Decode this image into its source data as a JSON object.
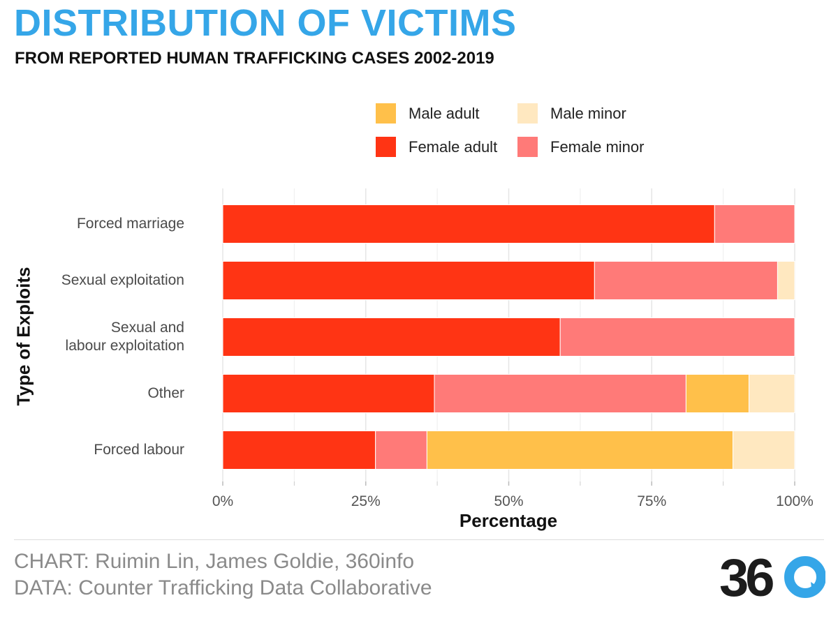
{
  "header": {
    "title": "DISTRIBUTION OF VICTIMS",
    "subtitle": "FROM REPORTED HUMAN TRAFFICKING CASES 2002-2019"
  },
  "colors": {
    "title": "#35a6e8",
    "female_adult": "#ff3414",
    "female_minor": "#ff7a78",
    "male_adult": "#ffc04a",
    "male_minor": "#ffe8c0",
    "logo_dark": "#1c1c1c",
    "logo_blue": "#35a6e8"
  },
  "legend": [
    {
      "label": "Male adult",
      "color": "#ffc04a"
    },
    {
      "label": "Male minor",
      "color": "#ffe8c0"
    },
    {
      "label": "Female adult",
      "color": "#ff3414"
    },
    {
      "label": "Female minor",
      "color": "#ff7a78"
    }
  ],
  "chart_data": {
    "type": "bar",
    "orientation": "horizontal",
    "stacked": true,
    "title": "DISTRIBUTION OF VICTIMS",
    "subtitle": "FROM REPORTED HUMAN TRAFFICKING CASES 2002-2019",
    "xlabel": "Percentage",
    "ylabel": "Type of Exploits",
    "xlim": [
      0,
      100
    ],
    "x_ticks": [
      "0%",
      "25%",
      "50%",
      "75%",
      "100%"
    ],
    "x_tick_values": [
      0,
      25,
      50,
      75,
      100
    ],
    "grid": true,
    "legend_position": "top-right",
    "categories": [
      "Forced marriage",
      "Sexual exploitation",
      "Sexual and\nlabour exploitation",
      "Other",
      "Forced labour"
    ],
    "series": [
      {
        "name": "Female adult",
        "values": [
          86,
          65,
          59,
          37,
          26.7
        ]
      },
      {
        "name": "Female minor",
        "values": [
          14,
          32,
          41,
          44,
          9
        ]
      },
      {
        "name": "Male adult",
        "values": [
          0,
          0,
          0,
          11,
          53.5
        ]
      },
      {
        "name": "Male minor",
        "values": [
          0,
          3,
          0,
          8,
          10.8
        ]
      }
    ]
  },
  "footer": {
    "chart_credit": "CHART: Ruimin Lin, James Goldie, 360info",
    "data_credit": "DATA: Counter Trafficking Data Collaborative",
    "logo_text": "360"
  }
}
